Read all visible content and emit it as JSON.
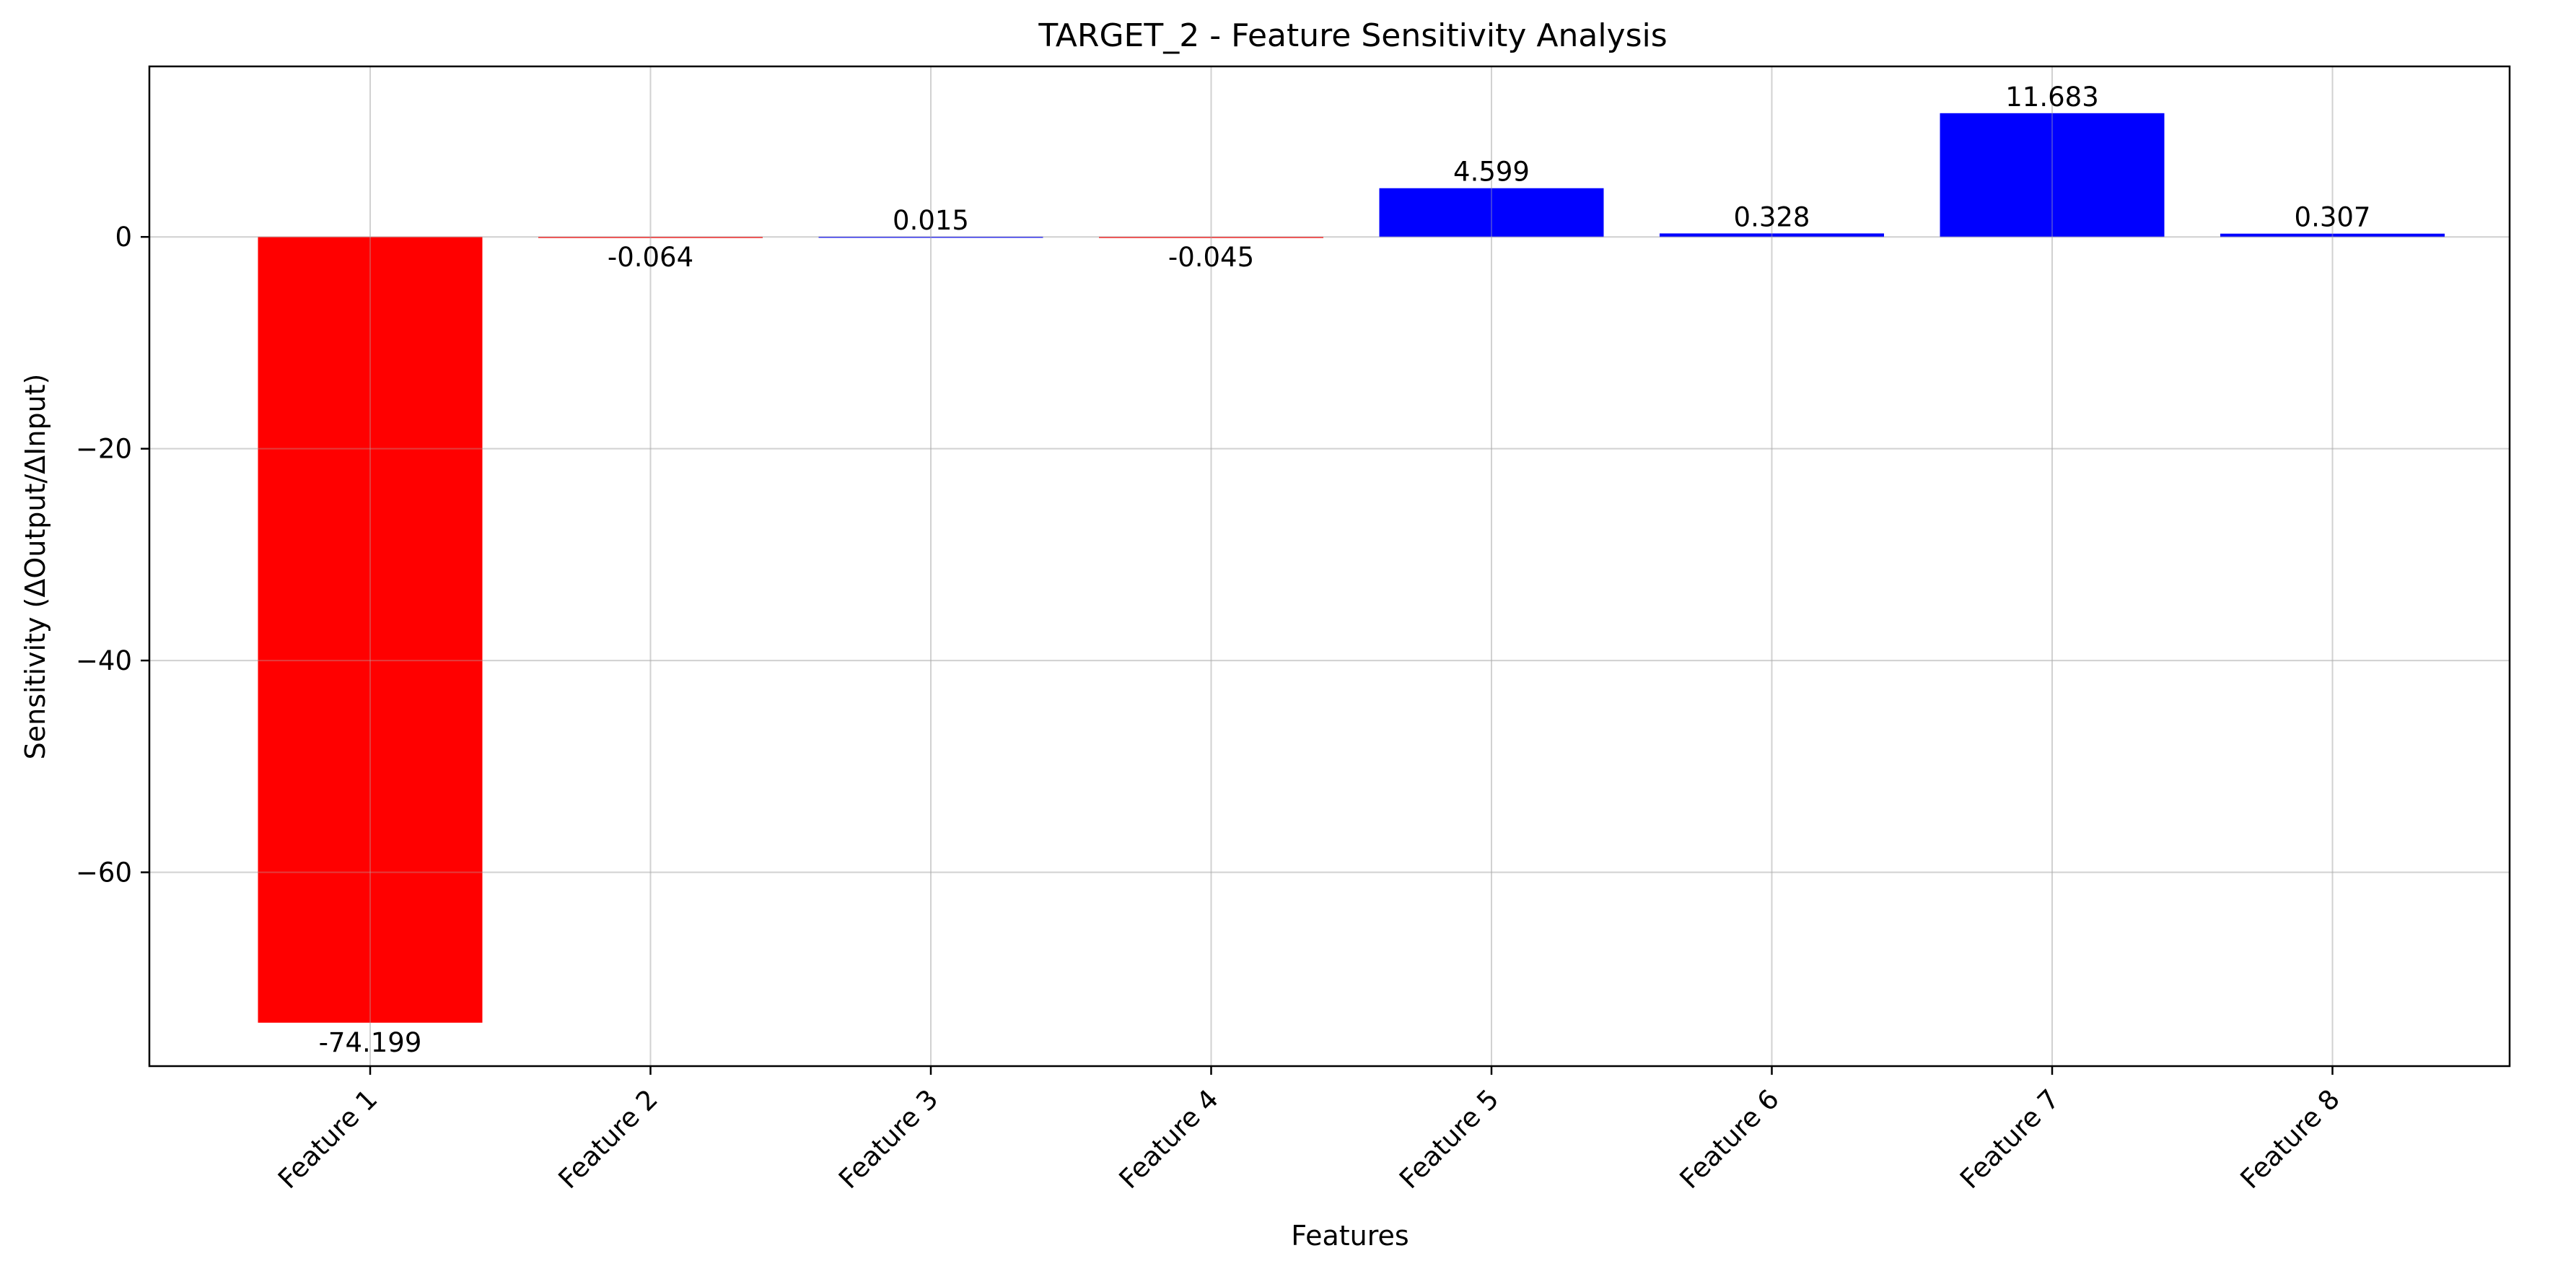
{
  "chart_data": {
    "type": "bar",
    "title": "TARGET_2 - Feature Sensitivity Analysis",
    "xlabel": "Features",
    "ylabel": "Sensitivity (ΔOutput/ΔInput)",
    "categories": [
      "Feature 1",
      "Feature 2",
      "Feature 3",
      "Feature 4",
      "Feature 5",
      "Feature 6",
      "Feature 7",
      "Feature 8"
    ],
    "values": [
      -74.199,
      -0.064,
      0.015,
      -0.045,
      4.599,
      0.328,
      11.683,
      0.307
    ],
    "value_labels": [
      "-74.199",
      "-0.064",
      "0.015",
      "-0.045",
      "4.599",
      "0.328",
      "11.683",
      "0.307"
    ],
    "ylim": [
      -78.3,
      16.1
    ],
    "yticks": [
      0,
      -20,
      -40,
      -60
    ],
    "ytick_labels": [
      "0",
      "−20",
      "−40",
      "−60"
    ],
    "grid": true,
    "colors": {
      "positive": "#0000ff",
      "negative": "#ff0000"
    }
  }
}
